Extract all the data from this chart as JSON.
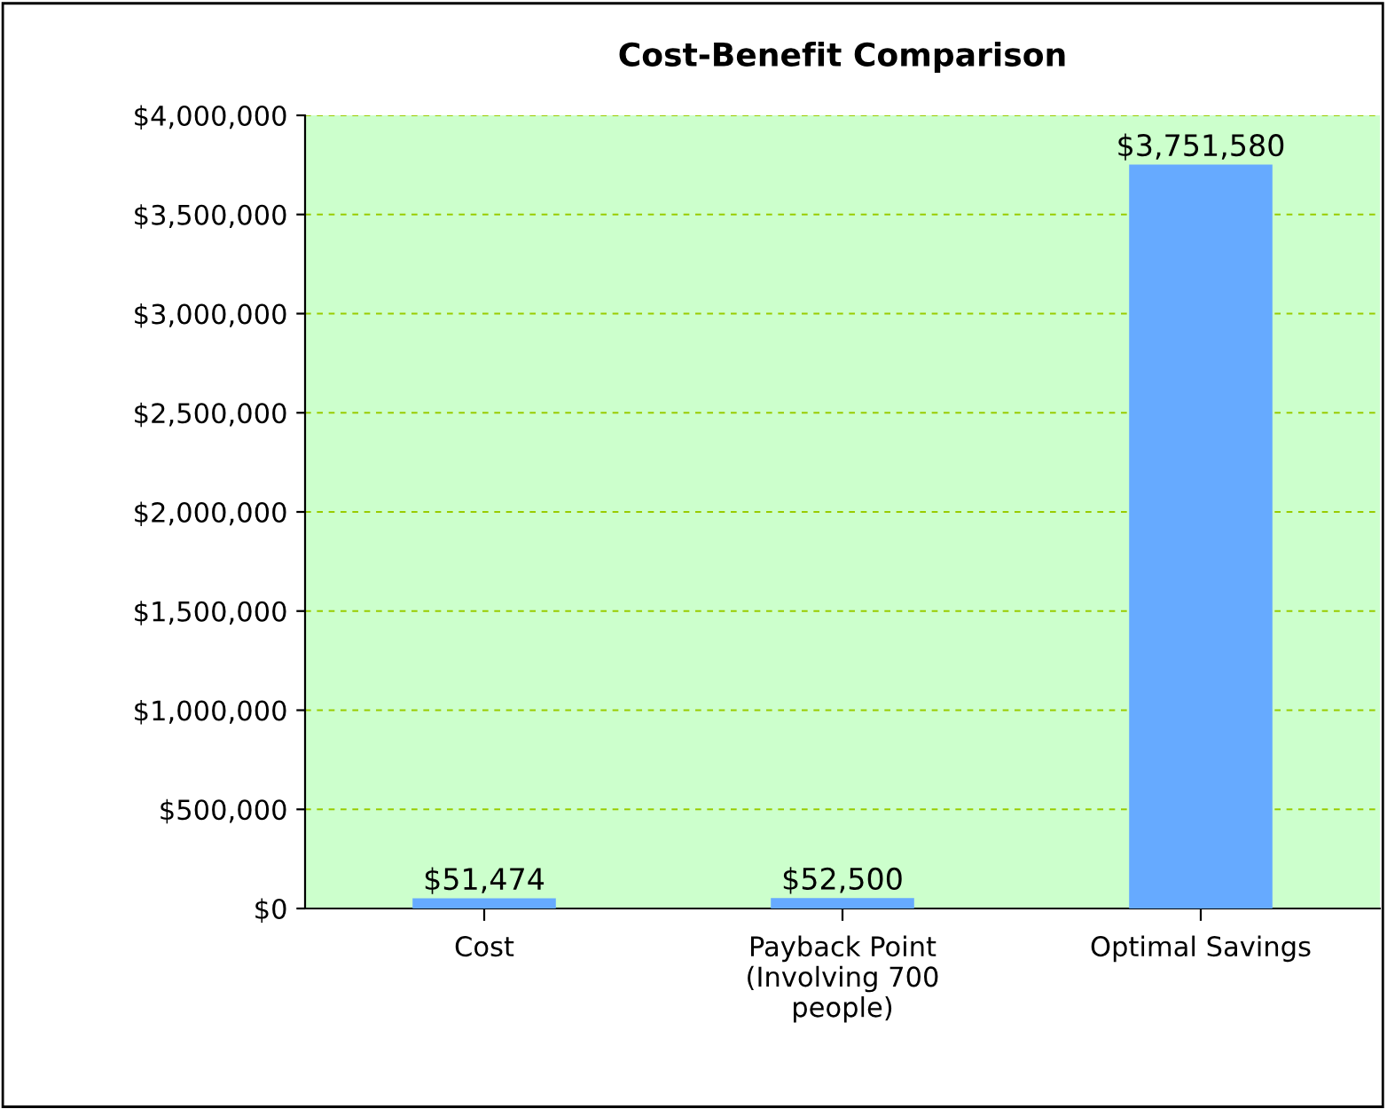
{
  "chart_data": {
    "type": "bar",
    "title": "Cost-Benefit Comparison",
    "categories": [
      "Cost",
      "Payback Point\n(Involving 700\npeople)",
      "Optimal Savings"
    ],
    "values": [
      51474,
      52500,
      3751580
    ],
    "value_labels": [
      "$51,474",
      "$52,500",
      "$3,751,580"
    ],
    "color": "#66aaff",
    "ylim": [
      0,
      4000000
    ],
    "yticks": [
      {
        "value": 0,
        "label": "$0"
      },
      {
        "value": 500000,
        "label": "$500,000"
      },
      {
        "value": 1000000,
        "label": "$1,000,000"
      },
      {
        "value": 1500000,
        "label": "$1,500,000"
      },
      {
        "value": 2000000,
        "label": "$2,000,000"
      },
      {
        "value": 2500000,
        "label": "$2,500,000"
      },
      {
        "value": 3000000,
        "label": "$3,000,000"
      },
      {
        "value": 3500000,
        "label": "$3,500,000"
      },
      {
        "value": 4000000,
        "label": "$4,000,000"
      }
    ],
    "grid": "y",
    "legend": false
  }
}
